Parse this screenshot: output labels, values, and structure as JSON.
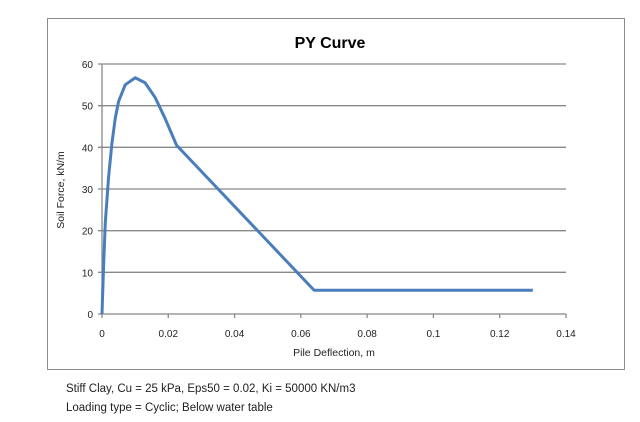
{
  "chart_data": {
    "type": "line",
    "title": "PY Curve",
    "xlabel": "Pile Deflection, m",
    "ylabel": "Soil Force, kN/m",
    "xlim": [
      0,
      0.14
    ],
    "ylim": [
      0,
      60
    ],
    "x_ticks": [
      "0",
      "0.02",
      "0.04",
      "0.06",
      "0.08",
      "0.1",
      "0.12",
      "0.14"
    ],
    "y_ticks": [
      "0",
      "10",
      "20",
      "30",
      "40",
      "50",
      "60"
    ],
    "grid": "horizontal",
    "legend": "none",
    "series": [
      {
        "color": "#4a7ebb",
        "x": [
          0,
          0.0005,
          0.001,
          0.002,
          0.003,
          0.004,
          0.005,
          0.007,
          0.01,
          0.013,
          0.016,
          0.019,
          0.0225,
          0.064,
          0.13
        ],
        "y": [
          0,
          12,
          22,
          33,
          41,
          47,
          51,
          55,
          56.7,
          55.5,
          52,
          47,
          40.5,
          5.7,
          5.7
        ]
      }
    ]
  },
  "notes": {
    "line1": "Stiff Clay, Cu = 25 kPa, Eps50 = 0.02, Ki = 50000 KN/m3",
    "line2": "Loading type = Cyclic;  Below water table"
  }
}
